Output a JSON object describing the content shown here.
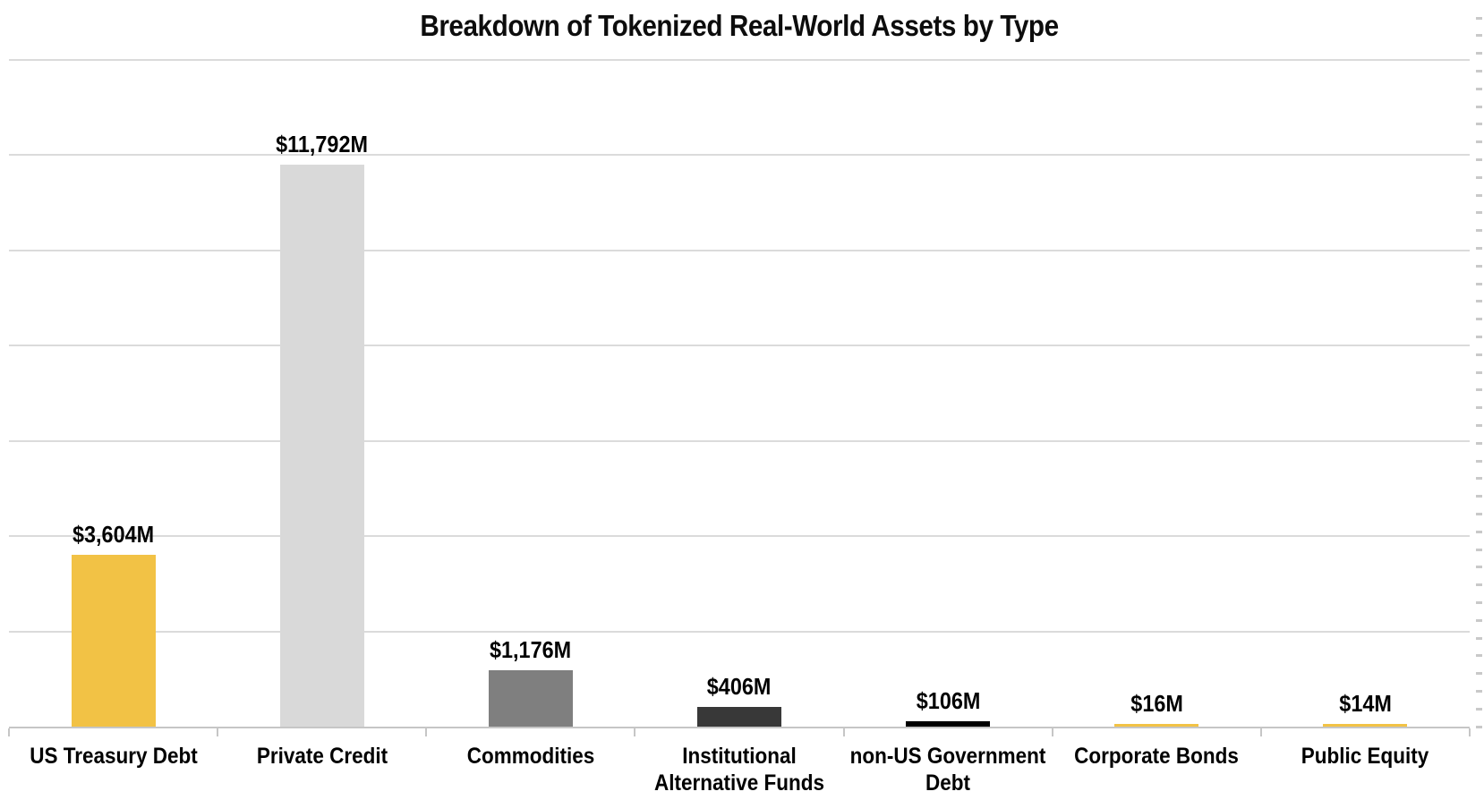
{
  "page": {
    "background_color": "#FFFFFF",
    "text_color": "#000000"
  },
  "chart_data": {
    "type": "bar",
    "title": "Breakdown of Tokenized Real-World Assets by Type",
    "categories": [
      "US Treasury Debt",
      "Private Credit",
      "Commodities",
      "Institutional\nAlternative Funds",
      "non-US Government\nDebt",
      "Corporate Bonds",
      "Public Equity"
    ],
    "values": [
      3604,
      11792,
      1176,
      406,
      106,
      16,
      14
    ],
    "value_labels": [
      "$3,604M",
      "$11,792M",
      "$1,176M",
      "$406M",
      "$106M",
      "$16M",
      "$14M"
    ],
    "unit": "USD millions",
    "bar_colors": [
      "#F2C245",
      "#D9D9D9",
      "#7F7F7F",
      "#383838",
      "#000000",
      "#F2C245",
      "#F2C245"
    ],
    "xlabel": "",
    "ylabel": "",
    "ylim": [
      0,
      14000
    ],
    "gridline_interval": 2000,
    "grid": "horizontal gridlines, no y-axis value labels",
    "minor_ticks": "small dashes along right edge",
    "legend": "none",
    "colors": {
      "accent_yellow": "#F2C245",
      "gridline": "#DBDBDB",
      "axis": "#C6C6C6",
      "minor_tick": "#C9C9C9",
      "title_text": "#0D0D0D",
      "label_text": "#000000"
    }
  }
}
